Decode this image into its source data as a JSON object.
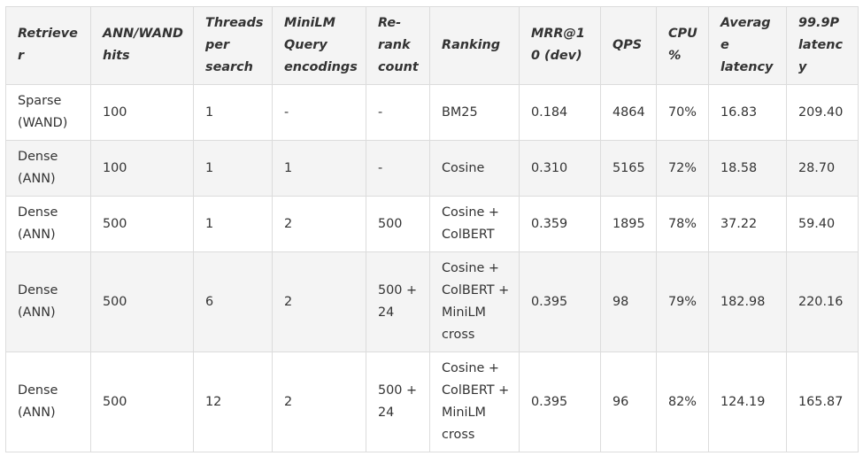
{
  "table": {
    "headers": [
      "Retriever",
      "ANN/WAND hits",
      "Threads per search",
      "MiniLM Query encodings",
      "Re-rank count",
      "Ranking",
      "MRR@10 (dev)",
      "QPS",
      "CPU %",
      "Average latency",
      "99.9P latency"
    ],
    "rows": [
      [
        "Sparse (WAND)",
        "100",
        "1",
        "-",
        "-",
        "BM25",
        "0.184",
        "4864",
        "70%",
        "16.83",
        "209.40"
      ],
      [
        "Dense (ANN)",
        "100",
        "1",
        "1",
        "-",
        "Cosine",
        "0.310",
        "5165",
        "72%",
        "18.58",
        "28.70"
      ],
      [
        "Dense (ANN)",
        "500",
        "1",
        "2",
        "500",
        "Cosine + ColBERT",
        "0.359",
        "1895",
        "78%",
        "37.22",
        "59.40"
      ],
      [
        "Dense (ANN)",
        "500",
        "6",
        "2",
        "500 + 24",
        "Cosine + ColBERT + MiniLM cross",
        "0.395",
        "98",
        "79%",
        "182.98",
        "220.16"
      ],
      [
        "Dense (ANN)",
        "500",
        "12",
        "2",
        "500 + 24",
        "Cosine + ColBERT + MiniLM cross",
        "0.395",
        "96",
        "82%",
        "124.19",
        "165.87"
      ]
    ]
  }
}
